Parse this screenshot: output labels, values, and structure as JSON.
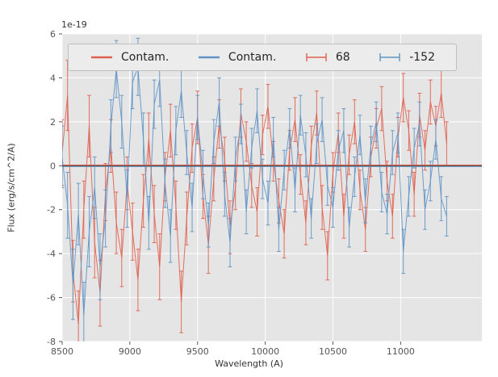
{
  "figure": {
    "offset_label": "1e-19",
    "xlabel": "Wavelength (A)",
    "ylabel": "Flux (erg/s/cm^2/A)"
  },
  "colors": {
    "red_series": "#e0604f",
    "blue_series": "#5f94c5",
    "axes_background": "#e5e5e5",
    "grid": "#ffffff",
    "tick_text": "#555555",
    "zero_line": "#444444"
  },
  "legend": {
    "items": [
      {
        "label": "Contam.",
        "color": "#e0604f",
        "type": "line"
      },
      {
        "label": "Contam.",
        "color": "#5f94c5",
        "type": "line"
      },
      {
        "label": "68",
        "color": "#e0604f",
        "type": "errorbar"
      },
      {
        "label": "-152",
        "color": "#5f94c5",
        "type": "errorbar"
      }
    ]
  },
  "chart_data": {
    "type": "line",
    "title": "",
    "xlabel": "Wavelength (A)",
    "ylabel": "Flux (erg/s/cm^2/A)",
    "y_offset_text": "1e-19",
    "units": "1e-19 erg/s/cm^2/A",
    "xlim": [
      8500,
      11600
    ],
    "ylim": [
      -8,
      6
    ],
    "xticks": [
      8500,
      9000,
      9500,
      10000,
      10500,
      11000
    ],
    "yticks": [
      -8,
      -6,
      -4,
      -2,
      0,
      2,
      4,
      6
    ],
    "grid": true,
    "legend_position": "upper center, horizontal, inside axes",
    "x": [
      8500,
      8540,
      8580,
      8620,
      8660,
      8700,
      8740,
      8780,
      8820,
      8860,
      8900,
      8940,
      8980,
      9020,
      9060,
      9100,
      9140,
      9180,
      9220,
      9260,
      9300,
      9340,
      9380,
      9420,
      9460,
      9500,
      9540,
      9580,
      9620,
      9660,
      9700,
      9740,
      9780,
      9820,
      9860,
      9900,
      9940,
      9980,
      10020,
      10060,
      10100,
      10140,
      10180,
      10220,
      10260,
      10300,
      10340,
      10380,
      10420,
      10460,
      10500,
      10540,
      10580,
      10620,
      10660,
      10700,
      10740,
      10780,
      10820,
      10860,
      10900,
      10940,
      10980,
      11020,
      11060,
      11100,
      11140,
      11180,
      11220,
      11260,
      11300,
      11340
    ],
    "series": [
      {
        "name": "Contam.",
        "style": "flat-line",
        "color": "#e0604f",
        "value": 0.0
      },
      {
        "name": "Contam.",
        "style": "flat-line",
        "color": "#5f94c5",
        "value": 0.0
      },
      {
        "name": "68",
        "style": "errorbar",
        "color": "#e0604f",
        "values": [
          0.6,
          3.2,
          -4.8,
          -7.2,
          -2.0,
          1.8,
          -3.5,
          -5.8,
          -1.2,
          0.9,
          -2.6,
          -4.2,
          -0.8,
          -3.0,
          -5.2,
          -1.6,
          1.2,
          -2.2,
          -4.6,
          -0.5,
          1.6,
          -1.8,
          -6.2,
          -2.4,
          0.8,
          2.2,
          -1.4,
          -3.6,
          -0.6,
          1.9,
          0.3,
          -2.8,
          -1.0,
          2.4,
          1.1,
          -0.9,
          -2.1,
          1.4,
          2.7,
          0.2,
          -1.6,
          -3.1,
          0.7,
          2.1,
          -0.4,
          -2.6,
          0.9,
          2.4,
          -1.9,
          -4.1,
          -0.3,
          1.5,
          -2.3,
          0.5,
          2.0,
          -1.1,
          -2.9,
          0.4,
          1.7,
          2.6,
          -0.7,
          -2.3,
          1.3,
          3.1,
          1.6,
          -1.3,
          2.3,
          0.7,
          2.9,
          1.8,
          3.3,
          1.0
        ],
        "errors": [
          1.5,
          1.6,
          1.4,
          1.5,
          1.3,
          1.4,
          1.6,
          1.5,
          1.3,
          1.2,
          1.4,
          1.3,
          1.2,
          1.3,
          1.4,
          1.2,
          1.2,
          1.3,
          1.5,
          1.1,
          1.2,
          1.1,
          1.4,
          1.2,
          1.1,
          1.2,
          1.0,
          1.3,
          1.0,
          1.1,
          1.0,
          1.2,
          1.0,
          1.1,
          0.9,
          1.0,
          1.1,
          0.9,
          1.0,
          0.9,
          1.0,
          1.1,
          0.9,
          1.0,
          0.9,
          1.0,
          0.9,
          1.0,
          1.0,
          1.1,
          0.9,
          0.9,
          1.0,
          0.9,
          1.0,
          0.9,
          1.0,
          0.9,
          0.9,
          1.0,
          0.9,
          1.0,
          0.9,
          1.1,
          0.9,
          1.0,
          1.0,
          0.9,
          1.0,
          0.9,
          1.1,
          1.0
        ]
      },
      {
        "name": "-152",
        "style": "errorbar",
        "color": "#5f94c5",
        "values": [
          0.4,
          -1.8,
          -5.4,
          -2.2,
          -6.8,
          -3.0,
          -1.0,
          -4.6,
          -2.4,
          1.8,
          4.4,
          2.0,
          -1.5,
          3.8,
          4.5,
          1.2,
          -2.6,
          2.8,
          3.9,
          -0.8,
          -3.2,
          1.6,
          3.4,
          0.6,
          -1.9,
          2.2,
          -0.4,
          -2.7,
          1.1,
          2.9,
          -1.3,
          -3.5,
          0.3,
          1.9,
          -2.1,
          0.8,
          2.5,
          -0.6,
          -1.7,
          1.3,
          -2.9,
          -0.2,
          1.7,
          -1.1,
          2.3,
          0.5,
          -2.4,
          1.0,
          2.1,
          -0.9,
          -1.9,
          0.7,
          1.6,
          -2.8,
          -0.5,
          1.4,
          -1.6,
          0.9,
          2.0,
          -1.2,
          -2.2,
          0.6,
          1.5,
          -3.9,
          -1.4,
          0.8,
          1.9,
          -2.0,
          -0.7,
          1.2,
          -1.5,
          -2.3
        ],
        "errors": [
          1.4,
          1.5,
          1.6,
          1.4,
          1.5,
          1.6,
          1.4,
          1.5,
          1.3,
          1.2,
          1.3,
          1.2,
          1.3,
          1.2,
          1.3,
          1.2,
          1.2,
          1.1,
          1.2,
          1.1,
          1.2,
          1.1,
          1.2,
          1.0,
          1.1,
          1.0,
          1.1,
          1.0,
          1.0,
          1.1,
          1.0,
          1.1,
          1.0,
          0.9,
          1.0,
          0.9,
          1.0,
          0.9,
          1.0,
          0.9,
          1.0,
          0.9,
          0.9,
          1.0,
          0.9,
          1.0,
          0.9,
          0.9,
          1.0,
          0.9,
          0.9,
          0.9,
          1.0,
          0.9,
          0.9,
          0.9,
          1.0,
          0.9,
          0.9,
          0.9,
          0.9,
          1.0,
          0.9,
          1.0,
          0.9,
          0.9,
          1.0,
          0.9,
          0.9,
          0.9,
          1.0,
          0.9
        ]
      }
    ]
  }
}
